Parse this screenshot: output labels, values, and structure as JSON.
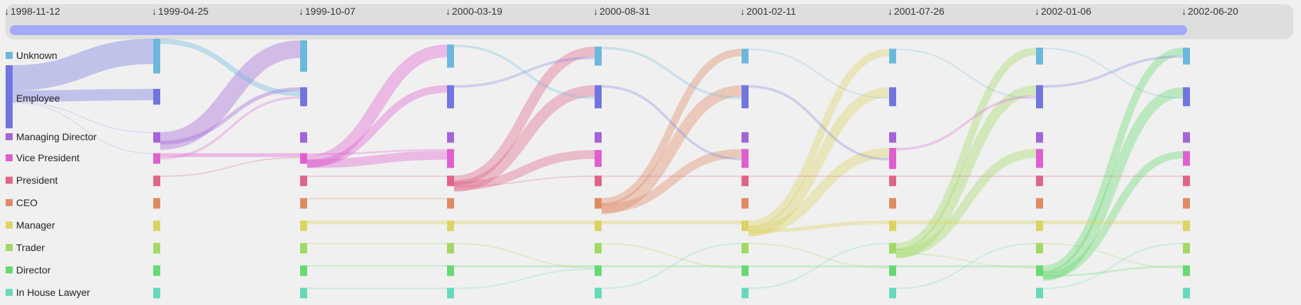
{
  "timeline": {
    "dates": [
      "1998-11-12",
      "1999-04-25",
      "1999-10-07",
      "2000-03-19",
      "2000-08-31",
      "2001-02-11",
      "2001-07-26",
      "2002-01-06",
      "2002-06-20"
    ],
    "arrow_glyph": "↓",
    "bar_color": "#a5a9fa"
  },
  "categories": [
    {
      "label": "Unknown",
      "color": "#6cb8dd"
    },
    {
      "label": "Employee",
      "color": "#7075e0"
    },
    {
      "label": "Managing Director",
      "color": "#a363d9"
    },
    {
      "label": "Vice President",
      "color": "#e05fcf"
    },
    {
      "label": "President",
      "color": "#e06487"
    },
    {
      "label": "CEO",
      "color": "#e08a63"
    },
    {
      "label": "Manager",
      "color": "#dcd363"
    },
    {
      "label": "Trader",
      "color": "#a0d965"
    },
    {
      "label": "Director",
      "color": "#66d972"
    },
    {
      "label": "In House Lawyer",
      "color": "#66d9bb"
    }
  ],
  "sizes": [
    [
      0,
      60,
      0,
      0,
      0,
      0,
      0,
      0,
      0,
      0
    ],
    [
      33,
      15,
      10,
      10,
      10,
      10,
      10,
      10,
      10,
      10
    ],
    [
      30,
      18,
      10,
      10,
      10,
      10,
      10,
      10,
      10,
      10
    ],
    [
      22,
      22,
      10,
      18,
      10,
      10,
      10,
      10,
      10,
      10
    ],
    [
      18,
      22,
      10,
      16,
      10,
      10,
      10,
      10,
      10,
      10
    ],
    [
      14,
      22,
      10,
      18,
      10,
      10,
      10,
      10,
      10,
      10
    ],
    [
      14,
      18,
      10,
      20,
      10,
      10,
      10,
      10,
      10,
      10
    ],
    [
      16,
      22,
      10,
      18,
      10,
      10,
      10,
      10,
      10,
      10
    ],
    [
      16,
      18,
      10,
      14,
      10,
      10,
      10,
      10,
      10,
      10
    ]
  ],
  "links": [
    [
      0,
      1,
      0,
      40
    ],
    [
      0,
      1,
      1,
      18
    ],
    [
      0,
      1,
      2,
      1
    ],
    [
      0,
      1,
      3,
      1
    ],
    [
      1,
      2,
      0,
      28
    ],
    [
      1,
      2,
      1,
      6
    ],
    [
      1,
      3,
      3,
      6
    ],
    [
      1,
      0,
      1,
      8
    ],
    [
      1,
      3,
      1,
      4
    ],
    [
      1,
      4,
      3,
      2
    ],
    [
      2,
      3,
      3,
      3
    ],
    [
      2,
      3,
      0,
      20
    ],
    [
      2,
      3,
      1,
      12
    ],
    [
      2,
      3,
      3,
      14
    ],
    [
      2,
      6,
      6,
      6
    ],
    [
      2,
      7,
      7,
      2
    ],
    [
      2,
      8,
      8,
      2
    ],
    [
      2,
      9,
      9,
      2
    ],
    [
      2,
      4,
      4,
      2
    ],
    [
      2,
      5,
      5,
      2
    ],
    [
      3,
      4,
      0,
      16
    ],
    [
      3,
      4,
      1,
      18
    ],
    [
      3,
      4,
      3,
      14
    ],
    [
      3,
      6,
      6,
      6
    ],
    [
      3,
      8,
      8,
      3
    ],
    [
      3,
      0,
      1,
      4
    ],
    [
      3,
      1,
      0,
      4
    ],
    [
      3,
      4,
      4,
      2
    ],
    [
      3,
      7,
      8,
      2
    ],
    [
      3,
      9,
      8,
      2
    ],
    [
      4,
      5,
      0,
      12
    ],
    [
      4,
      5,
      1,
      18
    ],
    [
      4,
      5,
      3,
      14
    ],
    [
      4,
      6,
      6,
      6
    ],
    [
      4,
      8,
      8,
      3
    ],
    [
      4,
      0,
      1,
      4
    ],
    [
      4,
      1,
      3,
      4
    ],
    [
      4,
      4,
      4,
      2
    ],
    [
      4,
      7,
      8,
      2
    ],
    [
      4,
      9,
      7,
      2
    ],
    [
      5,
      6,
      0,
      12
    ],
    [
      5,
      6,
      1,
      16
    ],
    [
      5,
      6,
      3,
      16
    ],
    [
      5,
      6,
      6,
      6
    ],
    [
      5,
      8,
      8,
      3
    ],
    [
      5,
      1,
      3,
      4
    ],
    [
      5,
      4,
      4,
      2
    ],
    [
      5,
      7,
      8,
      2
    ],
    [
      5,
      9,
      7,
      2
    ],
    [
      5,
      0,
      1,
      2
    ],
    [
      6,
      7,
      0,
      12
    ],
    [
      6,
      7,
      1,
      16
    ],
    [
      6,
      7,
      3,
      14
    ],
    [
      6,
      6,
      6,
      6
    ],
    [
      6,
      8,
      8,
      3
    ],
    [
      6,
      3,
      1,
      4
    ],
    [
      6,
      4,
      4,
      2
    ],
    [
      6,
      7,
      8,
      2
    ],
    [
      6,
      9,
      7,
      2
    ],
    [
      6,
      0,
      1,
      2
    ],
    [
      7,
      8,
      0,
      12
    ],
    [
      7,
      8,
      1,
      16
    ],
    [
      7,
      8,
      3,
      12
    ],
    [
      7,
      6,
      6,
      6
    ],
    [
      7,
      8,
      8,
      3
    ],
    [
      7,
      1,
      0,
      4
    ],
    [
      7,
      4,
      4,
      2
    ],
    [
      7,
      7,
      8,
      2
    ],
    [
      7,
      9,
      7,
      2
    ],
    [
      7,
      0,
      1,
      2
    ]
  ]
}
